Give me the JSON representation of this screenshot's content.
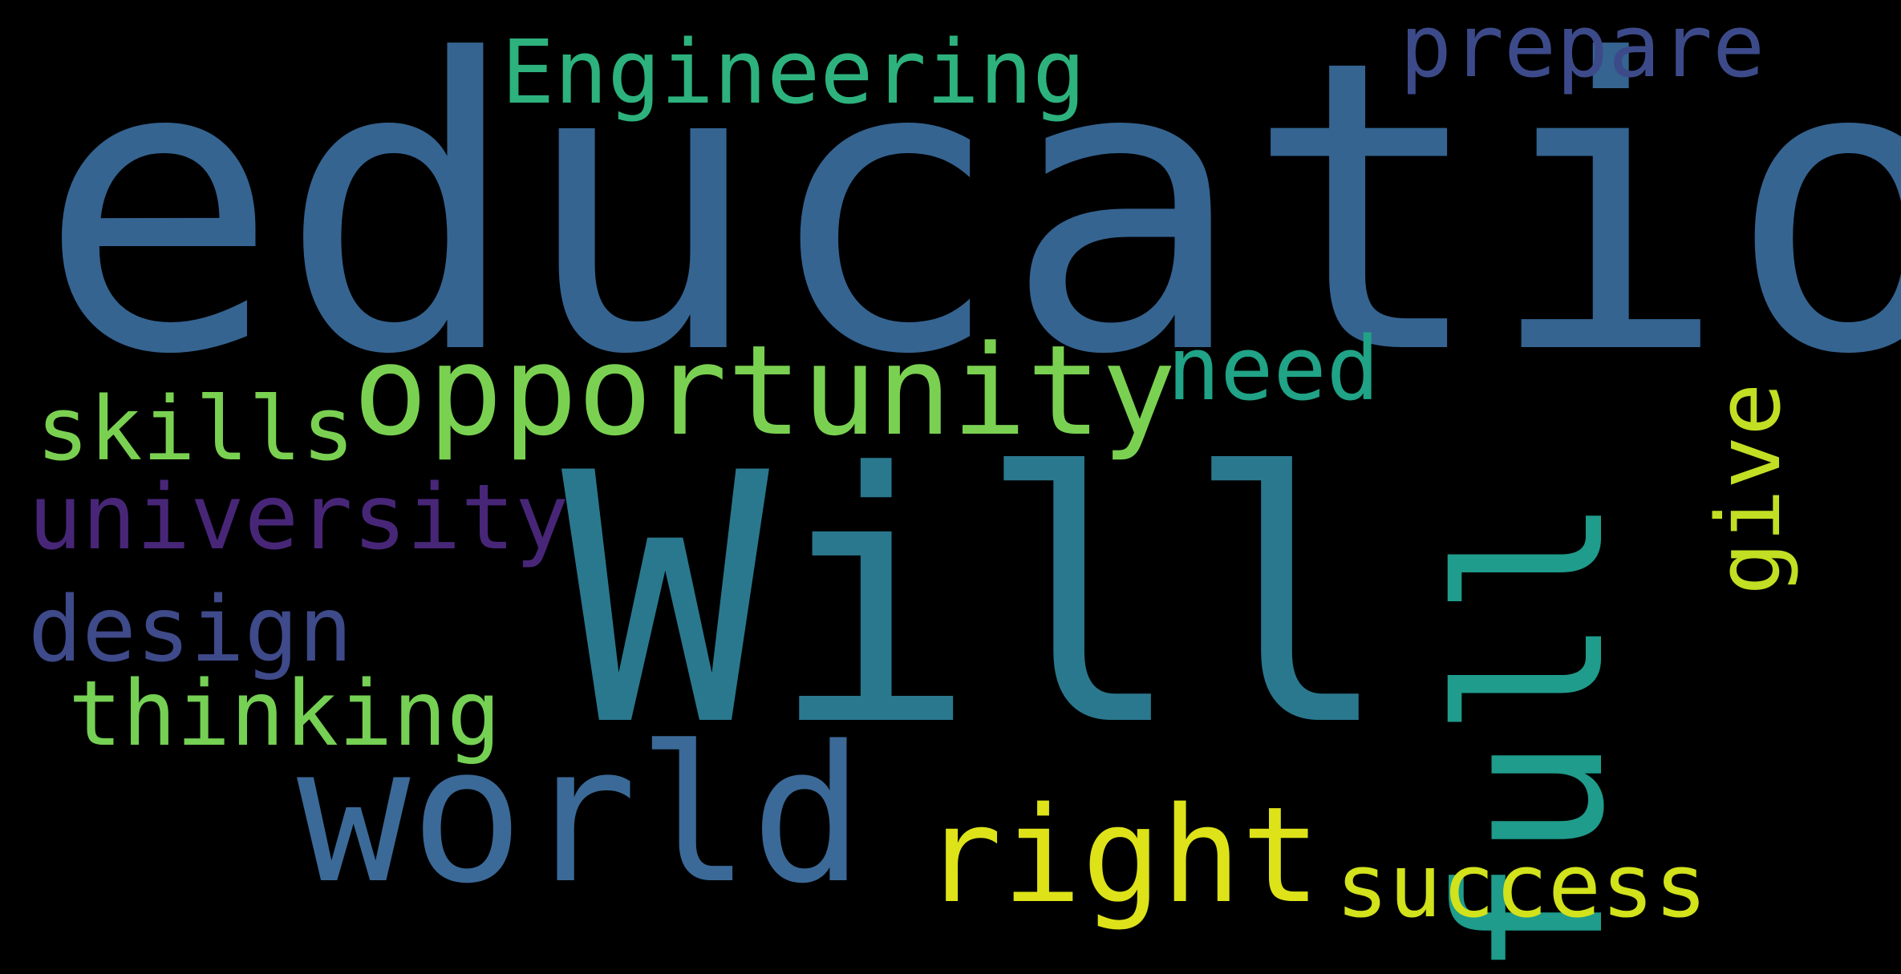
{
  "words": [
    {
      "text": "education",
      "color": "#356491"
    },
    {
      "text": "Will",
      "color": "#2a788e"
    },
    {
      "text": "world",
      "color": "#3b6a98"
    },
    {
      "text": "opportunity",
      "color": "#7ad151"
    },
    {
      "text": "full",
      "color": "#1f9c8b"
    },
    {
      "text": "right",
      "color": "#dde318"
    },
    {
      "text": "Engineering",
      "color": "#2db27d"
    },
    {
      "text": "prepare",
      "color": "#3d4a8a"
    },
    {
      "text": "need",
      "color": "#20a386"
    },
    {
      "text": "skills",
      "color": "#7ad151"
    },
    {
      "text": "university",
      "color": "#482677"
    },
    {
      "text": "design",
      "color": "#3e4a89"
    },
    {
      "text": "thinking",
      "color": "#75d054"
    },
    {
      "text": "give",
      "color": "#c2df23"
    },
    {
      "text": "success",
      "color": "#d2e21b"
    }
  ],
  "background_color": "#000000"
}
